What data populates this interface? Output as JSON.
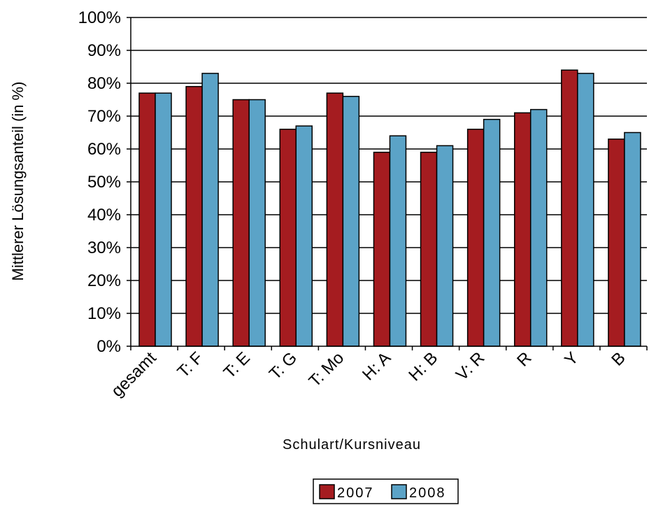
{
  "chart_data": {
    "type": "bar",
    "title": "",
    "xlabel": "Schulart/Kursniveau",
    "ylabel": "Mittlerer Lösungsanteil (in %)",
    "ylim": [
      0,
      100
    ],
    "y_ticks": [
      "0%",
      "10%",
      "20%",
      "30%",
      "40%",
      "50%",
      "60%",
      "70%",
      "80%",
      "90%",
      "100%"
    ],
    "grid": true,
    "legend_position": "bottom",
    "categories": [
      "gesamt",
      "T: F",
      "T: E",
      "T: G",
      "T: Mo",
      "H: A",
      "H: B",
      "V: R",
      "R",
      "Y",
      "B"
    ],
    "series": [
      {
        "name": "2007",
        "color": "#A51C20",
        "values": [
          77,
          79,
          75,
          66,
          77,
          59,
          59,
          66,
          71,
          84,
          63
        ]
      },
      {
        "name": "2008",
        "color": "#5BA3C7",
        "values": [
          77,
          83,
          75,
          67,
          76,
          64,
          61,
          69,
          72,
          83,
          65
        ]
      }
    ]
  }
}
